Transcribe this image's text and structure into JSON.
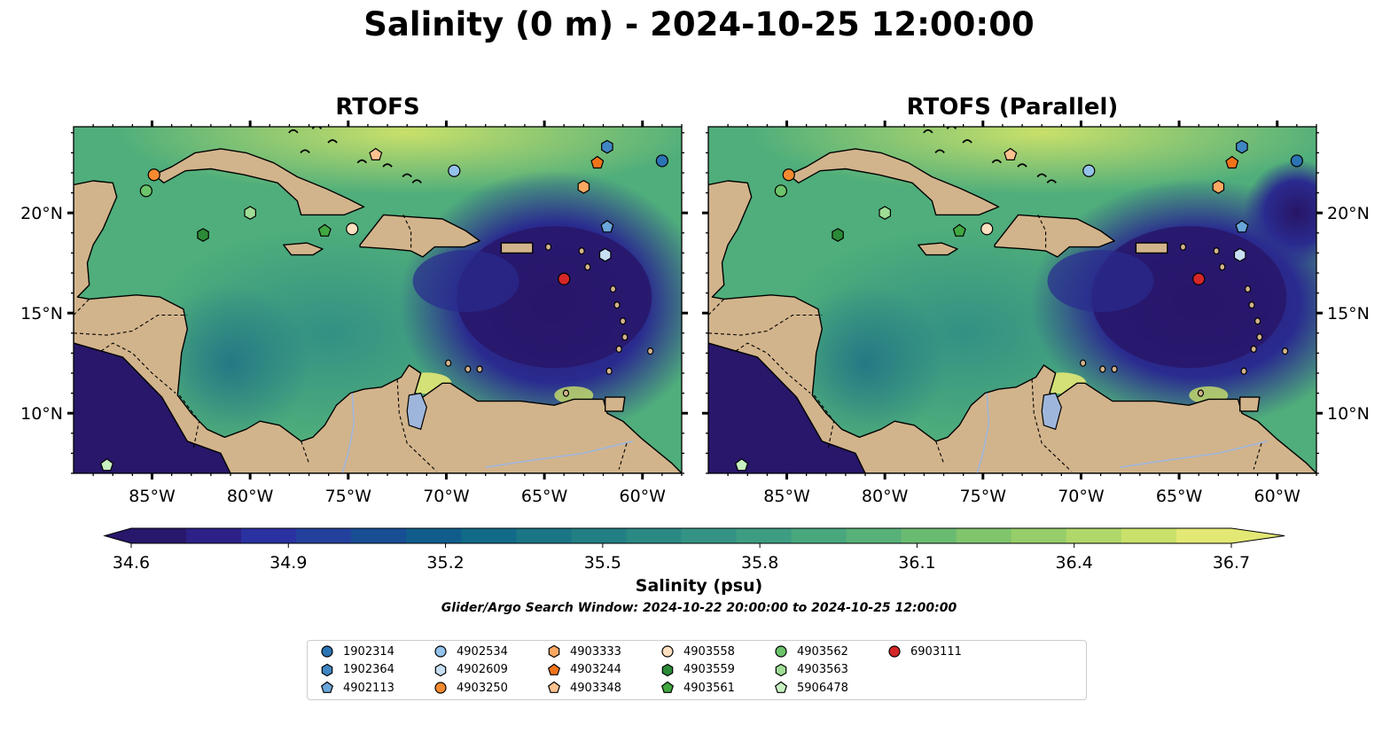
{
  "title": "Salinity (0 m) - 2024-10-25 12:00:00",
  "panels": [
    {
      "title": "RTOFS"
    },
    {
      "title": "RTOFS (Parallel)"
    }
  ],
  "lon_labels": [
    "85°W",
    "80°W",
    "75°W",
    "70°W",
    "65°W",
    "60°W"
  ],
  "lat_labels": [
    "20°N",
    "15°N",
    "10°N"
  ],
  "colorbar": {
    "label": "Salinity (psu)",
    "ticks": [
      "34.6",
      "34.9",
      "35.2",
      "35.5",
      "35.8",
      "36.1",
      "36.4",
      "36.7"
    ],
    "colors": [
      "#28176a",
      "#2b2187",
      "#2a31a0",
      "#23409c",
      "#184e94",
      "#105d8c",
      "#116a87",
      "#1a7585",
      "#227f84",
      "#2b8984",
      "#349384",
      "#3d9d82",
      "#49a77e",
      "#58b179",
      "#6abb72",
      "#80c56c",
      "#96ce69",
      "#b0d769",
      "#c9e06a",
      "#e3e875"
    ]
  },
  "search_window": "Glider/Argo Search Window: 2024-10-22 20:00:00 to 2024-10-25 12:00:00",
  "legend": [
    {
      "id": "1902314",
      "shape": "circle",
      "color": "#2b73b3"
    },
    {
      "id": "1902364",
      "shape": "hexagon",
      "color": "#3f86c3"
    },
    {
      "id": "4902113",
      "shape": "pentagon",
      "color": "#6aa6da"
    },
    {
      "id": "4902534",
      "shape": "circle",
      "color": "#93c2ea"
    },
    {
      "id": "4902609",
      "shape": "hexagon",
      "color": "#c7def3"
    },
    {
      "id": "4903250",
      "shape": "circle",
      "color": "#f48a2f"
    },
    {
      "id": "4903333",
      "shape": "hexagon",
      "color": "#fba862"
    },
    {
      "id": "4903244",
      "shape": "pentagon",
      "color": "#f07318"
    },
    {
      "id": "4903348",
      "shape": "pentagon",
      "color": "#fcc28f"
    },
    {
      "id": "4903558",
      "shape": "circle",
      "color": "#fde0bf"
    },
    {
      "id": "4903559",
      "shape": "hexagon",
      "color": "#2b8a36"
    },
    {
      "id": "4903561",
      "shape": "pentagon",
      "color": "#40a840"
    },
    {
      "id": "4903562",
      "shape": "circle",
      "color": "#6bc46a"
    },
    {
      "id": "4903563",
      "shape": "hexagon",
      "color": "#9fdd95"
    },
    {
      "id": "5906478",
      "shape": "pentagon",
      "color": "#c8f0c0"
    },
    {
      "id": "6903111",
      "shape": "circle",
      "color": "#d62728"
    }
  ],
  "floats": [
    {
      "id": "1902314",
      "lon": -59.0,
      "lat": 22.6
    },
    {
      "id": "1902364",
      "lon": -61.8,
      "lat": 23.3
    },
    {
      "id": "4902113",
      "lon": -61.8,
      "lat": 19.3
    },
    {
      "id": "4902534",
      "lon": -69.6,
      "lat": 22.1
    },
    {
      "id": "4902609",
      "lon": -61.9,
      "lat": 17.9
    },
    {
      "id": "4903250",
      "lon": -84.9,
      "lat": 21.9
    },
    {
      "id": "4903333",
      "lon": -63.0,
      "lat": 21.3
    },
    {
      "id": "4903244",
      "lon": -62.3,
      "lat": 22.5
    },
    {
      "id": "4903348",
      "lon": -73.6,
      "lat": 22.9
    },
    {
      "id": "4903558",
      "lon": -74.8,
      "lat": 19.2
    },
    {
      "id": "4903559",
      "lon": -82.4,
      "lat": 18.9
    },
    {
      "id": "4903561",
      "lon": -76.2,
      "lat": 19.1
    },
    {
      "id": "4903562",
      "lon": -85.3,
      "lat": 21.1
    },
    {
      "id": "4903563",
      "lon": -80.0,
      "lat": 20.0
    },
    {
      "id": "5906478",
      "lon": -87.3,
      "lat": 7.4
    },
    {
      "id": "6903111",
      "lon": -64.0,
      "lat": 16.7
    }
  ]
}
